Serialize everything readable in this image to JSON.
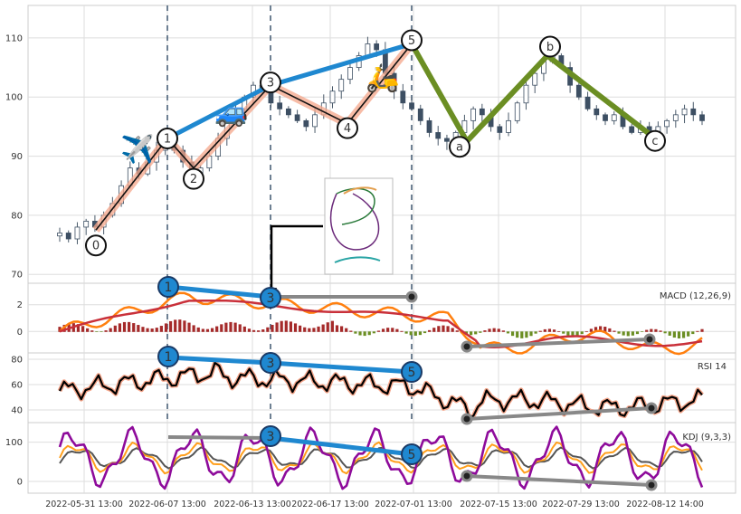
{
  "chart_data": [
    {
      "type": "candlestick",
      "panel": "price",
      "yticks": [
        70,
        80,
        90,
        100,
        110
      ],
      "ylim": [
        68.5,
        115.5
      ],
      "wave_labels": [
        "0",
        "1",
        "2",
        "3",
        "4",
        "5",
        "a",
        "b",
        "c"
      ],
      "waves": [
        {
          "label": "0",
          "date": "2022-06-02",
          "value": 77.5
        },
        {
          "label": "1",
          "date": "2022-06-07",
          "value": 93
        },
        {
          "label": "2",
          "date": "2022-06-10",
          "value": 88
        },
        {
          "label": "3",
          "date": "2022-06-13",
          "value": 102
        },
        {
          "label": "4",
          "date": "2022-06-18",
          "value": 95.5
        },
        {
          "label": "5",
          "date": "2022-06-22",
          "value": 109
        },
        {
          "label": "a",
          "date": "2022-07-10",
          "value": 92.5
        },
        {
          "label": "b",
          "date": "2022-07-22",
          "value": 107
        },
        {
          "label": "c",
          "date": "2022-08-10",
          "value": 93.5
        }
      ],
      "price_series": [
        77,
        76,
        78,
        79,
        78,
        80,
        82,
        85,
        88,
        87,
        89,
        91,
        93,
        91,
        89,
        87,
        88,
        90,
        93,
        96,
        98,
        100,
        102,
        101,
        99,
        98,
        97,
        96,
        95,
        97,
        99,
        101,
        103,
        105,
        107,
        109,
        108,
        104,
        101,
        99,
        98,
        96,
        94,
        93,
        92.5,
        94,
        96,
        98,
        97,
        95,
        94,
        96,
        99,
        102,
        104,
        106,
        107,
        105,
        102,
        100,
        98,
        97,
        96,
        97,
        95,
        94,
        95,
        93.5,
        95,
        96,
        97,
        98,
        97,
        96
      ],
      "icons": [
        "airplane-icon",
        "car-icon",
        "scooter-icon"
      ]
    },
    {
      "type": "bar+line",
      "panel": "macd",
      "label": "MACD (12,26,9)",
      "yticks": [
        0,
        2
      ],
      "ylim": [
        -1.6,
        3.6
      ],
      "divergence_labels": [
        "1",
        "3"
      ]
    },
    {
      "type": "line",
      "panel": "rsi",
      "label": "RSI 14",
      "yticks": [
        40,
        60,
        80
      ],
      "ylim": [
        30,
        85
      ],
      "divergence_labels": [
        "1",
        "3",
        "5"
      ]
    },
    {
      "type": "line",
      "panel": "kdj",
      "label": "KDJ (9,3,3)",
      "yticks": [
        0,
        100
      ],
      "ylim": [
        -30,
        150
      ],
      "divergence_labels": [
        "3",
        "5"
      ]
    }
  ],
  "x_axis": {
    "tick_labels": [
      "2022-05-31 13:00",
      "2022-06-07 13:00",
      "2022-06-13 13:00",
      "2022-06-17 13:00",
      "2022-07-01 13:00",
      "2022-07-15 13:00",
      "2022-07-29 13:00",
      "2022-08-12 14:00"
    ]
  },
  "colors": {
    "impulse": "#f4a58a",
    "correction": "#6b8e23",
    "trend": "#1f88d0",
    "macd_line": "#ff7f0e",
    "signal_line": "#c9303a",
    "hist_pos": "#a52a2a",
    "hist_neg": "#6b8e23",
    "rsi": "#000000",
    "k_line": "#ff9f1c",
    "d_line": "#555555",
    "j_line": "#8e0b9b",
    "divergence": "#888888"
  }
}
